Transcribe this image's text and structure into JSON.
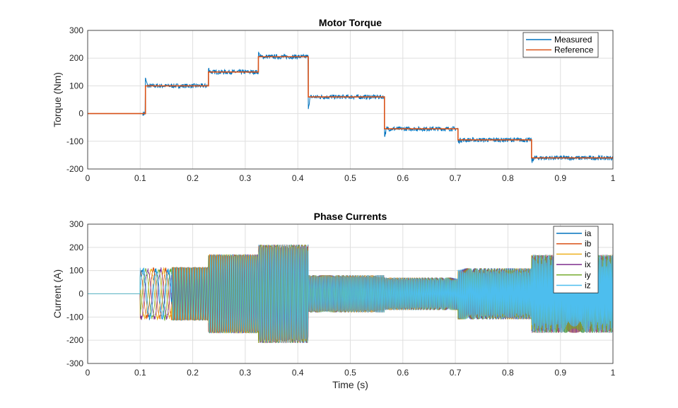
{
  "chart_data": [
    {
      "type": "line",
      "title": "Motor Torque",
      "xlabel": "",
      "ylabel": "Torque (Nm)",
      "xlim": [
        0,
        1
      ],
      "ylim": [
        -200,
        300
      ],
      "grid": true,
      "legend_placement": "top-right",
      "xticks": [
        "0",
        "0.1",
        "0.2",
        "0.3",
        "0.4",
        "0.5",
        "0.6",
        "0.7",
        "0.8",
        "0.9",
        "1"
      ],
      "yticks": [
        "-200",
        "-100",
        "0",
        "100",
        "200",
        "300"
      ],
      "series": [
        {
          "name": "Measured",
          "color": "#0072BD",
          "step_times": [
            0,
            0.11,
            0.23,
            0.325,
            0.42,
            0.565,
            0.705,
            0.845
          ],
          "values": [
            0,
            100,
            150,
            205,
            60,
            -55,
            -95,
            -160
          ],
          "noise": 8
        },
        {
          "name": "Reference",
          "color": "#D95319",
          "step_times": [
            0,
            0.11,
            0.23,
            0.325,
            0.42,
            0.565,
            0.705,
            0.845
          ],
          "values": [
            0,
            100,
            150,
            205,
            60,
            -55,
            -95,
            -160
          ]
        }
      ]
    },
    {
      "type": "line",
      "title": "Phase Currents",
      "xlabel": "Time (s)",
      "ylabel": "Current (A)",
      "xlim": [
        0,
        1
      ],
      "ylim": [
        -300,
        300
      ],
      "grid": true,
      "legend_placement": "top-right",
      "xticks": [
        "0",
        "0.1",
        "0.2",
        "0.3",
        "0.4",
        "0.5",
        "0.6",
        "0.7",
        "0.8",
        "0.9",
        "1"
      ],
      "yticks": [
        "-300",
        "-200",
        "-100",
        "0",
        "100",
        "200",
        "300"
      ],
      "segment_times": [
        0,
        0.1,
        0.23,
        0.325,
        0.42,
        0.565,
        0.705,
        0.845
      ],
      "segment_amplitudes": [
        0,
        115,
        170,
        212,
        80,
        70,
        110,
        168
      ],
      "series": [
        {
          "name": "ia",
          "color": "#0072BD"
        },
        {
          "name": "ib",
          "color": "#D95319"
        },
        {
          "name": "ic",
          "color": "#EDB120"
        },
        {
          "name": "ix",
          "color": "#7E2F8E"
        },
        {
          "name": "iy",
          "color": "#77AC30"
        },
        {
          "name": "iz",
          "color": "#4DBEEE"
        }
      ]
    }
  ]
}
